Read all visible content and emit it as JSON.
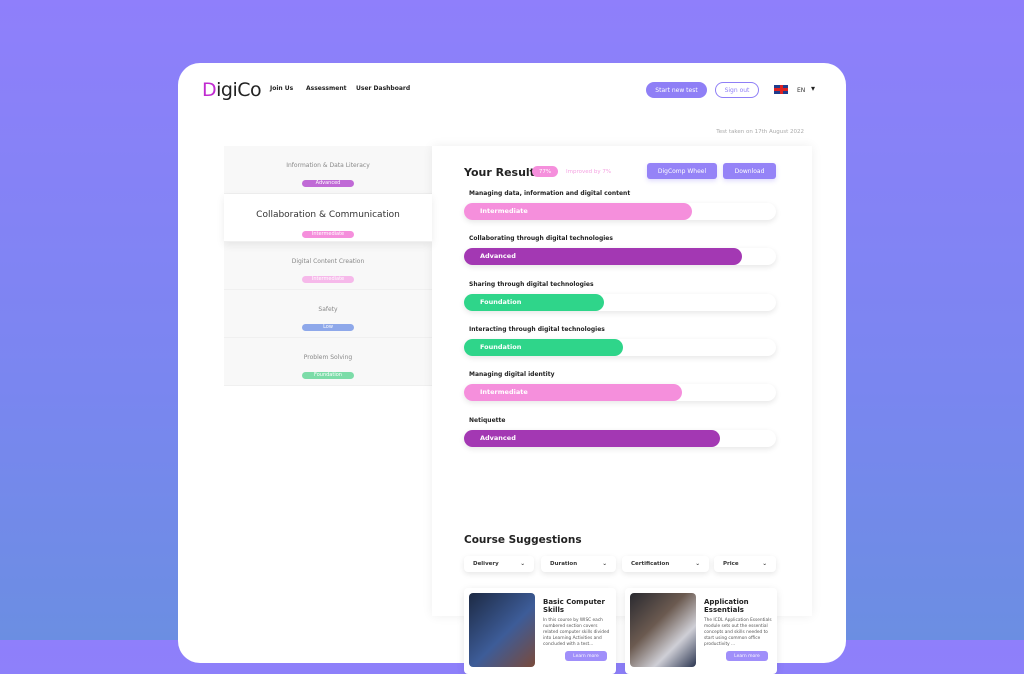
{
  "header": {
    "logo": "DigiCo",
    "logo_mark": "D",
    "logo_rest": "igiCo",
    "nav": [
      "Join Us",
      "Assessment",
      "User Dashboard"
    ],
    "start_label": "Start new test",
    "signout_label": "Sign out",
    "lang": "EN",
    "flag_icon": "uk-flag-icon"
  },
  "test_taken": "Test taken on 17th August 2022",
  "sidebar": {
    "items": [
      {
        "title": "Information & Data Literacy",
        "badge": "Advanced",
        "color": "#c06ad6"
      },
      {
        "title": "Collaboration & Communication",
        "badge": "Intermediate",
        "color": "#f58fdc",
        "active": true
      },
      {
        "title": "Digital Content Creation",
        "badge": "Intermediate",
        "color": "#f6b9ea"
      },
      {
        "title": "Safety",
        "badge": "Low",
        "color": "#8ea8ea"
      },
      {
        "title": "Problem Solving",
        "badge": "Foundation",
        "color": "#7cdca8"
      }
    ]
  },
  "result": {
    "title": "Your Result",
    "score": "77%",
    "improved": "Improved by 7%",
    "wheel_label": "DigComp Wheel",
    "download_label": "Download",
    "competences": [
      {
        "label": "Managing data, information and digital content",
        "level": "Intermediate",
        "percent": 73,
        "color": "#f58fdc"
      },
      {
        "label": "Collaborating through digital technologies",
        "level": "Advanced",
        "percent": 89,
        "color": "#a338b3"
      },
      {
        "label": "Sharing through digital technologies",
        "level": "Foundation",
        "percent": 45,
        "color": "#2fd58a"
      },
      {
        "label": "Interacting through digital technologies",
        "level": "Foundation",
        "percent": 51,
        "color": "#2fd58a"
      },
      {
        "label": "Managing digital identity",
        "level": "Intermediate",
        "percent": 70,
        "color": "#f58fdc"
      },
      {
        "label": "Netiquette",
        "level": "Advanced",
        "percent": 82,
        "color": "#a338b3"
      }
    ]
  },
  "courses": {
    "title": "Course Suggestions",
    "filters": [
      "Delivery",
      "Duration",
      "Certification",
      "Price"
    ],
    "items": [
      {
        "title": "Basic Computer Skills",
        "desc": "In this course by WISC each numbered section covers related computer skills divided into Learning Activities and concluded with a test...",
        "button": "Learn more"
      },
      {
        "title": "Application Essentials",
        "desc": "The ICDL Application Essentials module sets out the essential concepts and skills needed to start using common office productivity ...",
        "button": "Learn more"
      }
    ]
  }
}
